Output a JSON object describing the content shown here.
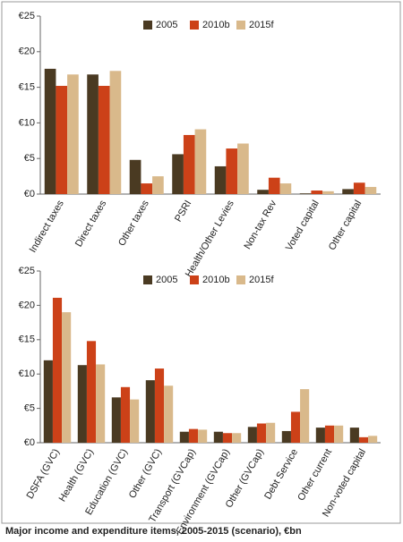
{
  "chart_data": [
    {
      "type": "bar",
      "categories": [
        "Indirect taxes",
        "Direct taxes",
        "Other taxes",
        "PSRI",
        "Health/Other Levies",
        "Non-tax Rev",
        "Voted capital",
        "Other capital"
      ],
      "series": [
        {
          "name": "2005",
          "color": "#4a3a22",
          "values": [
            17.6,
            16.8,
            4.8,
            5.6,
            3.9,
            0.6,
            0.1,
            0.7
          ]
        },
        {
          "name": "2010b",
          "color": "#cc4118",
          "values": [
            15.2,
            15.2,
            1.5,
            8.3,
            6.4,
            2.3,
            0.5,
            1.6
          ]
        },
        {
          "name": "2015f",
          "color": "#d9b98b",
          "values": [
            16.8,
            17.3,
            2.5,
            9.1,
            7.1,
            1.5,
            0.4,
            1.0
          ]
        }
      ],
      "ylim": [
        0,
        25
      ],
      "yticks": [
        {
          "value": 0,
          "label": "€0"
        },
        {
          "value": 5,
          "label": "€5"
        },
        {
          "value": 10,
          "label": "€10"
        },
        {
          "value": 15,
          "label": "€15"
        },
        {
          "value": 20,
          "label": "€20"
        },
        {
          "value": 25,
          "label": "€25"
        }
      ],
      "grid": false,
      "legend": "top"
    },
    {
      "type": "bar",
      "categories": [
        "DSFA (GVC)",
        "Health (GVC)",
        "Education (GVC)",
        "Other (GVC)",
        "Transport (GVCap)",
        "Environment (GVCap)",
        "Other (GVCap)",
        "Debt Service",
        "Other current",
        "Non-voted capital"
      ],
      "series": [
        {
          "name": "2005",
          "color": "#4a3a22",
          "values": [
            12.0,
            11.3,
            6.6,
            9.1,
            1.6,
            1.6,
            2.3,
            1.7,
            2.2,
            2.2
          ]
        },
        {
          "name": "2010b",
          "color": "#cc4118",
          "values": [
            21.1,
            14.8,
            8.1,
            10.8,
            2.0,
            1.4,
            2.8,
            4.5,
            2.5,
            0.8
          ]
        },
        {
          "name": "2015f",
          "color": "#d9b98b",
          "values": [
            19.0,
            11.4,
            6.3,
            8.3,
            1.9,
            1.4,
            2.9,
            7.8,
            2.5,
            1.0
          ]
        }
      ],
      "ylim": [
        0,
        25
      ],
      "yticks": [
        {
          "value": 0,
          "label": "€0"
        },
        {
          "value": 5,
          "label": "€5"
        },
        {
          "value": 10,
          "label": "€10"
        },
        {
          "value": 15,
          "label": "€15"
        },
        {
          "value": 20,
          "label": "€20"
        },
        {
          "value": 25,
          "label": "€25"
        }
      ],
      "grid": false,
      "legend": "top"
    }
  ],
  "caption": "Major income and expenditure items, 2005-2015 (scenario), €bn"
}
